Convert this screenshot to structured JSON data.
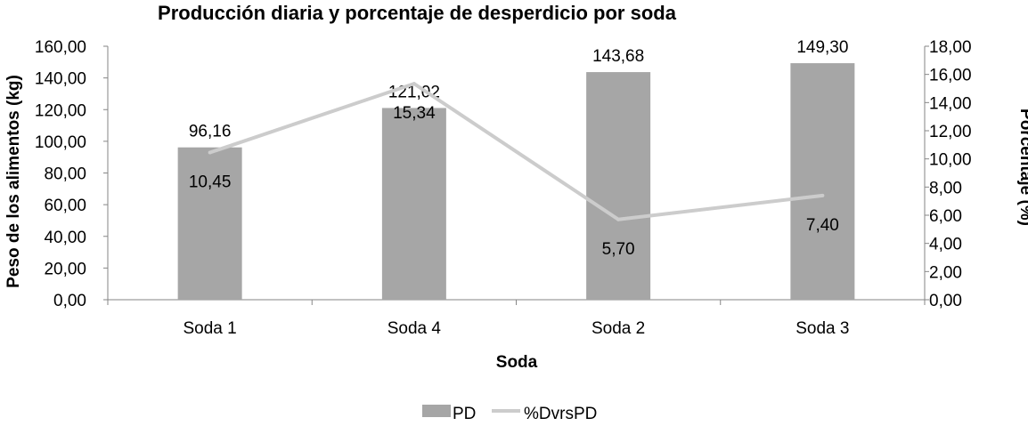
{
  "chart_data": {
    "type": "bar",
    "title": "Producción diaria y porcentaje de desperdicio por soda",
    "xlabel": "Soda",
    "ylabel": "Peso de los alimentos (kg)",
    "y2label": "Porcentaje (%)",
    "categories": [
      "Soda 1",
      "Soda 4",
      "Soda 2",
      "Soda 3"
    ],
    "series": [
      {
        "name": "PD",
        "type": "bar",
        "axis": "left",
        "color": "#a6a6a6",
        "values": [
          96.16,
          121.02,
          143.68,
          149.3
        ],
        "labels": [
          "96,16",
          "121,02",
          "143,68",
          "149,30"
        ]
      },
      {
        "name": "%DvrsPD",
        "type": "line",
        "axis": "right",
        "color": "#cccccc",
        "values": [
          10.45,
          15.34,
          5.7,
          7.4
        ],
        "labels": [
          "10,45",
          "15,34",
          "5,70",
          "7,40"
        ]
      }
    ],
    "ylim": [
      0,
      160
    ],
    "y2lim": [
      0,
      18
    ],
    "yticks": [
      "0,00",
      "20,00",
      "40,00",
      "60,00",
      "80,00",
      "100,00",
      "120,00",
      "140,00",
      "160,00"
    ],
    "y2ticks": [
      "0,00",
      "2,00",
      "4,00",
      "6,00",
      "8,00",
      "10,00",
      "12,00",
      "14,00",
      "16,00",
      "18,00"
    ],
    "grid": false,
    "legend": "bottom",
    "axis_color": "#868686"
  }
}
